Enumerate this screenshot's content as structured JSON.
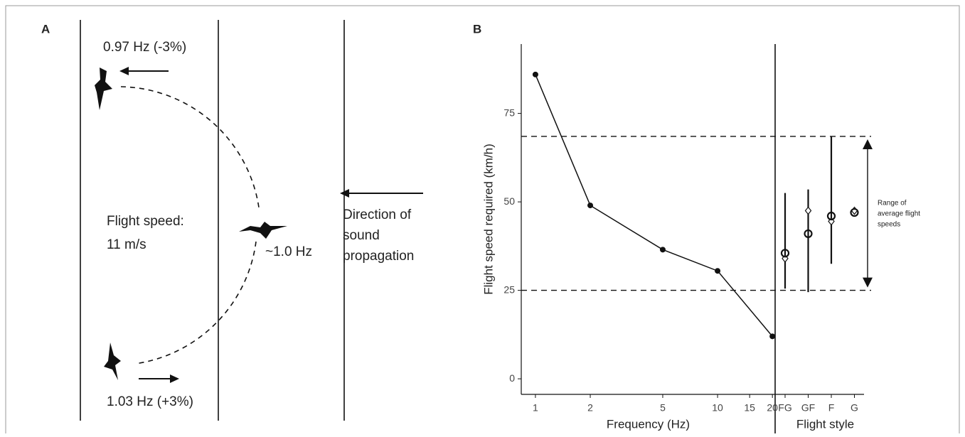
{
  "panel_a": {
    "label": "A",
    "top_freq": "0.97 Hz (-3%)",
    "speed": [
      "Flight speed:",
      "11 m/s"
    ],
    "mid_freq": "~1.0 Hz",
    "direction": [
      "Direction of",
      "sound",
      "propagation"
    ],
    "bottom_freq": "1.03 Hz (+3%)"
  },
  "chart_data": {
    "type": "line",
    "panel_label": "B",
    "xlabel": "Frequency (Hz)",
    "ylabel": "Flight speed required (km/h)",
    "log_x": true,
    "x": [
      1,
      2,
      5,
      10,
      20
    ],
    "values": [
      86,
      49,
      36.5,
      30.5,
      12
    ],
    "color": "#111111",
    "xlim": [
      0.836,
      20.7
    ],
    "xticks": [
      1,
      2,
      5,
      10,
      15,
      20
    ],
    "ylim": [
      -4.4,
      94.6
    ],
    "yticks": [
      0,
      25,
      50,
      75
    ],
    "hlines": [
      68.5,
      25
    ],
    "style_panel": {
      "xlabel": "Flight style",
      "categories": [
        "FG",
        "GF",
        "F",
        "G"
      ],
      "circle_values": [
        35.5,
        41,
        46,
        47
      ],
      "diamond_values": [
        34,
        47.5,
        44.5,
        47.5
      ],
      "range_low": [
        25.5,
        24.5,
        32.5,
        null
      ],
      "range_high": [
        52.5,
        53.5,
        68.5,
        null
      ]
    },
    "annotation": [
      "Range of",
      "average flight",
      "speeds"
    ]
  }
}
